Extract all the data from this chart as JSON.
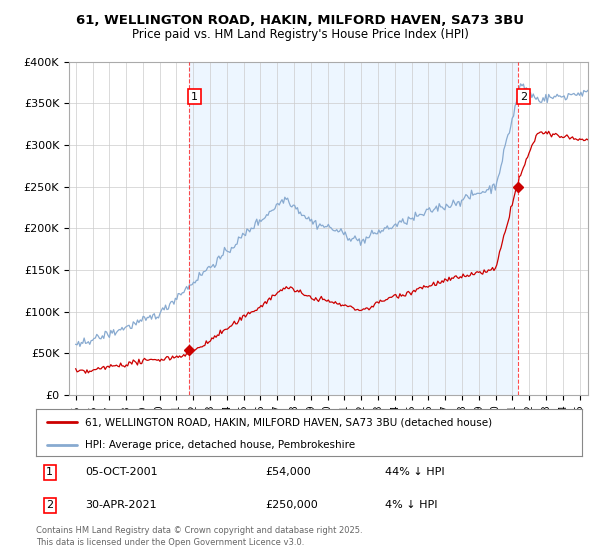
{
  "title_line1": "61, WELLINGTON ROAD, HAKIN, MILFORD HAVEN, SA73 3BU",
  "title_line2": "Price paid vs. HM Land Registry's House Price Index (HPI)",
  "ylim": [
    0,
    400000
  ],
  "yticks": [
    0,
    50000,
    100000,
    150000,
    200000,
    250000,
    300000,
    350000,
    400000
  ],
  "ytick_labels": [
    "£0",
    "£50K",
    "£100K",
    "£150K",
    "£200K",
    "£250K",
    "£300K",
    "£350K",
    "£400K"
  ],
  "transaction1": {
    "date_num": 2001.76,
    "price": 54000,
    "label": "1",
    "date_str": "05-OCT-2001",
    "price_str": "£54,000",
    "note": "44% ↓ HPI"
  },
  "transaction2": {
    "date_num": 2021.33,
    "price": 250000,
    "label": "2",
    "date_str": "30-APR-2021",
    "price_str": "£250,000",
    "note": "4% ↓ HPI"
  },
  "line_property_color": "#cc0000",
  "line_hpi_color": "#88aad0",
  "shade_color": "#ddeeff",
  "background_color": "#ffffff",
  "grid_color": "#cccccc",
  "legend_label_property": "61, WELLINGTON ROAD, HAKIN, MILFORD HAVEN, SA73 3BU (detached house)",
  "legend_label_hpi": "HPI: Average price, detached house, Pembrokeshire",
  "footer_line1": "Contains HM Land Registry data © Crown copyright and database right 2025.",
  "footer_line2": "This data is licensed under the Open Government Licence v3.0."
}
